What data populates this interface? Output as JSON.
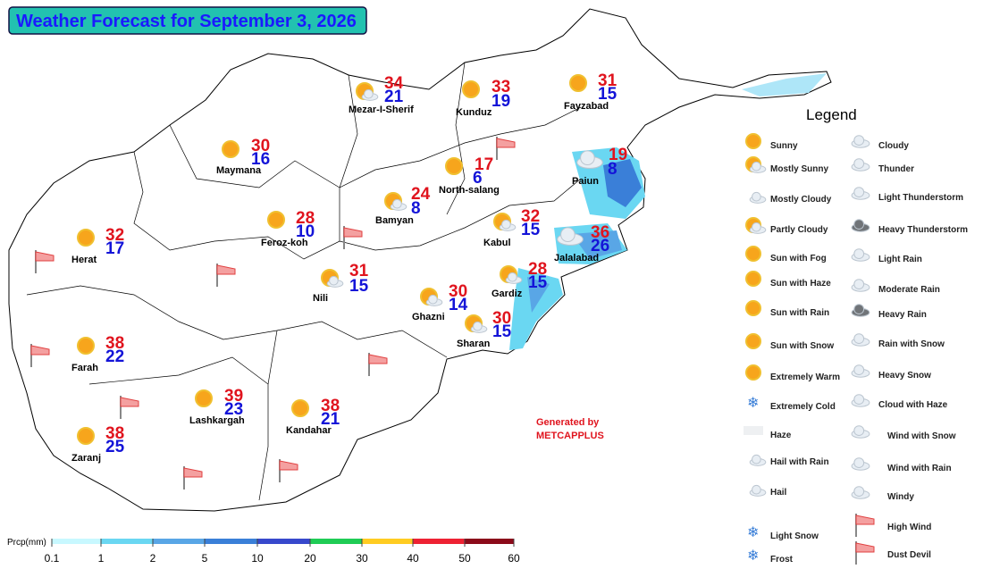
{
  "header": {
    "title": "Weather Forecast for September 3, 2026"
  },
  "cities": [
    {
      "name": "Mezar-I-Sherif",
      "max": 34,
      "min": 21
    },
    {
      "name": "Kunduz",
      "max": 33,
      "min": 19
    },
    {
      "name": "Fayzabad",
      "max": 31,
      "min": 15
    },
    {
      "name": "Maymana",
      "max": 30,
      "min": 16
    },
    {
      "name": "North-salang",
      "max": 17,
      "min": 6
    },
    {
      "name": "Paiun",
      "max": 19,
      "min": 8
    },
    {
      "name": "Bamyan",
      "max": 24,
      "min": 8
    },
    {
      "name": "Feroz-koh",
      "max": 28,
      "min": 10
    },
    {
      "name": "Kabul",
      "max": 32,
      "min": 15
    },
    {
      "name": "Herat",
      "max": 32,
      "min": 17
    },
    {
      "name": "Jalalabad",
      "max": 36,
      "min": 26
    },
    {
      "name": "Nili",
      "max": 31,
      "min": 15
    },
    {
      "name": "Gardiz",
      "max": 28,
      "min": 15
    },
    {
      "name": "Ghazni",
      "max": 30,
      "min": 14
    },
    {
      "name": "Sharan",
      "max": 30,
      "min": 15
    },
    {
      "name": "Farah",
      "max": 38,
      "min": 22
    },
    {
      "name": "Lashkargah",
      "max": 39,
      "min": 23
    },
    {
      "name": "Kandahar",
      "max": 38,
      "min": 21
    },
    {
      "name": "Zaranj",
      "max": 38,
      "min": 25
    }
  ],
  "credit": [
    "Generated by",
    "METCAPPLUS"
  ],
  "legend": {
    "title": "Legend",
    "left": [
      "Sunny",
      "Mostly Sunny",
      "Mostly Cloudy",
      "Partly Cloudy",
      "Sun with Fog",
      "Sun with Haze",
      "Sun with Rain",
      "Sun with Snow",
      "Extremely Warm",
      "Extremely Cold",
      "Haze",
      "Hail with Rain",
      "Hail",
      "Light Snow",
      "Frost"
    ],
    "right": [
      "Cloudy",
      "Thunder",
      "Light Thunderstorm",
      "Heavy Thunderstorm",
      "Light Rain",
      "Moderate Rain",
      "Heavy Rain",
      "Rain with Snow",
      "Heavy Snow",
      "Cloud with Haze",
      "Wind with Snow",
      "Wind with Rain",
      "Windy",
      "High Wind",
      "Dust Devil"
    ]
  },
  "precip_scale": {
    "label": "Prcp(mm)",
    "ticks": [
      0.1,
      1,
      2,
      5,
      10,
      20,
      30,
      40,
      50,
      60
    ]
  }
}
